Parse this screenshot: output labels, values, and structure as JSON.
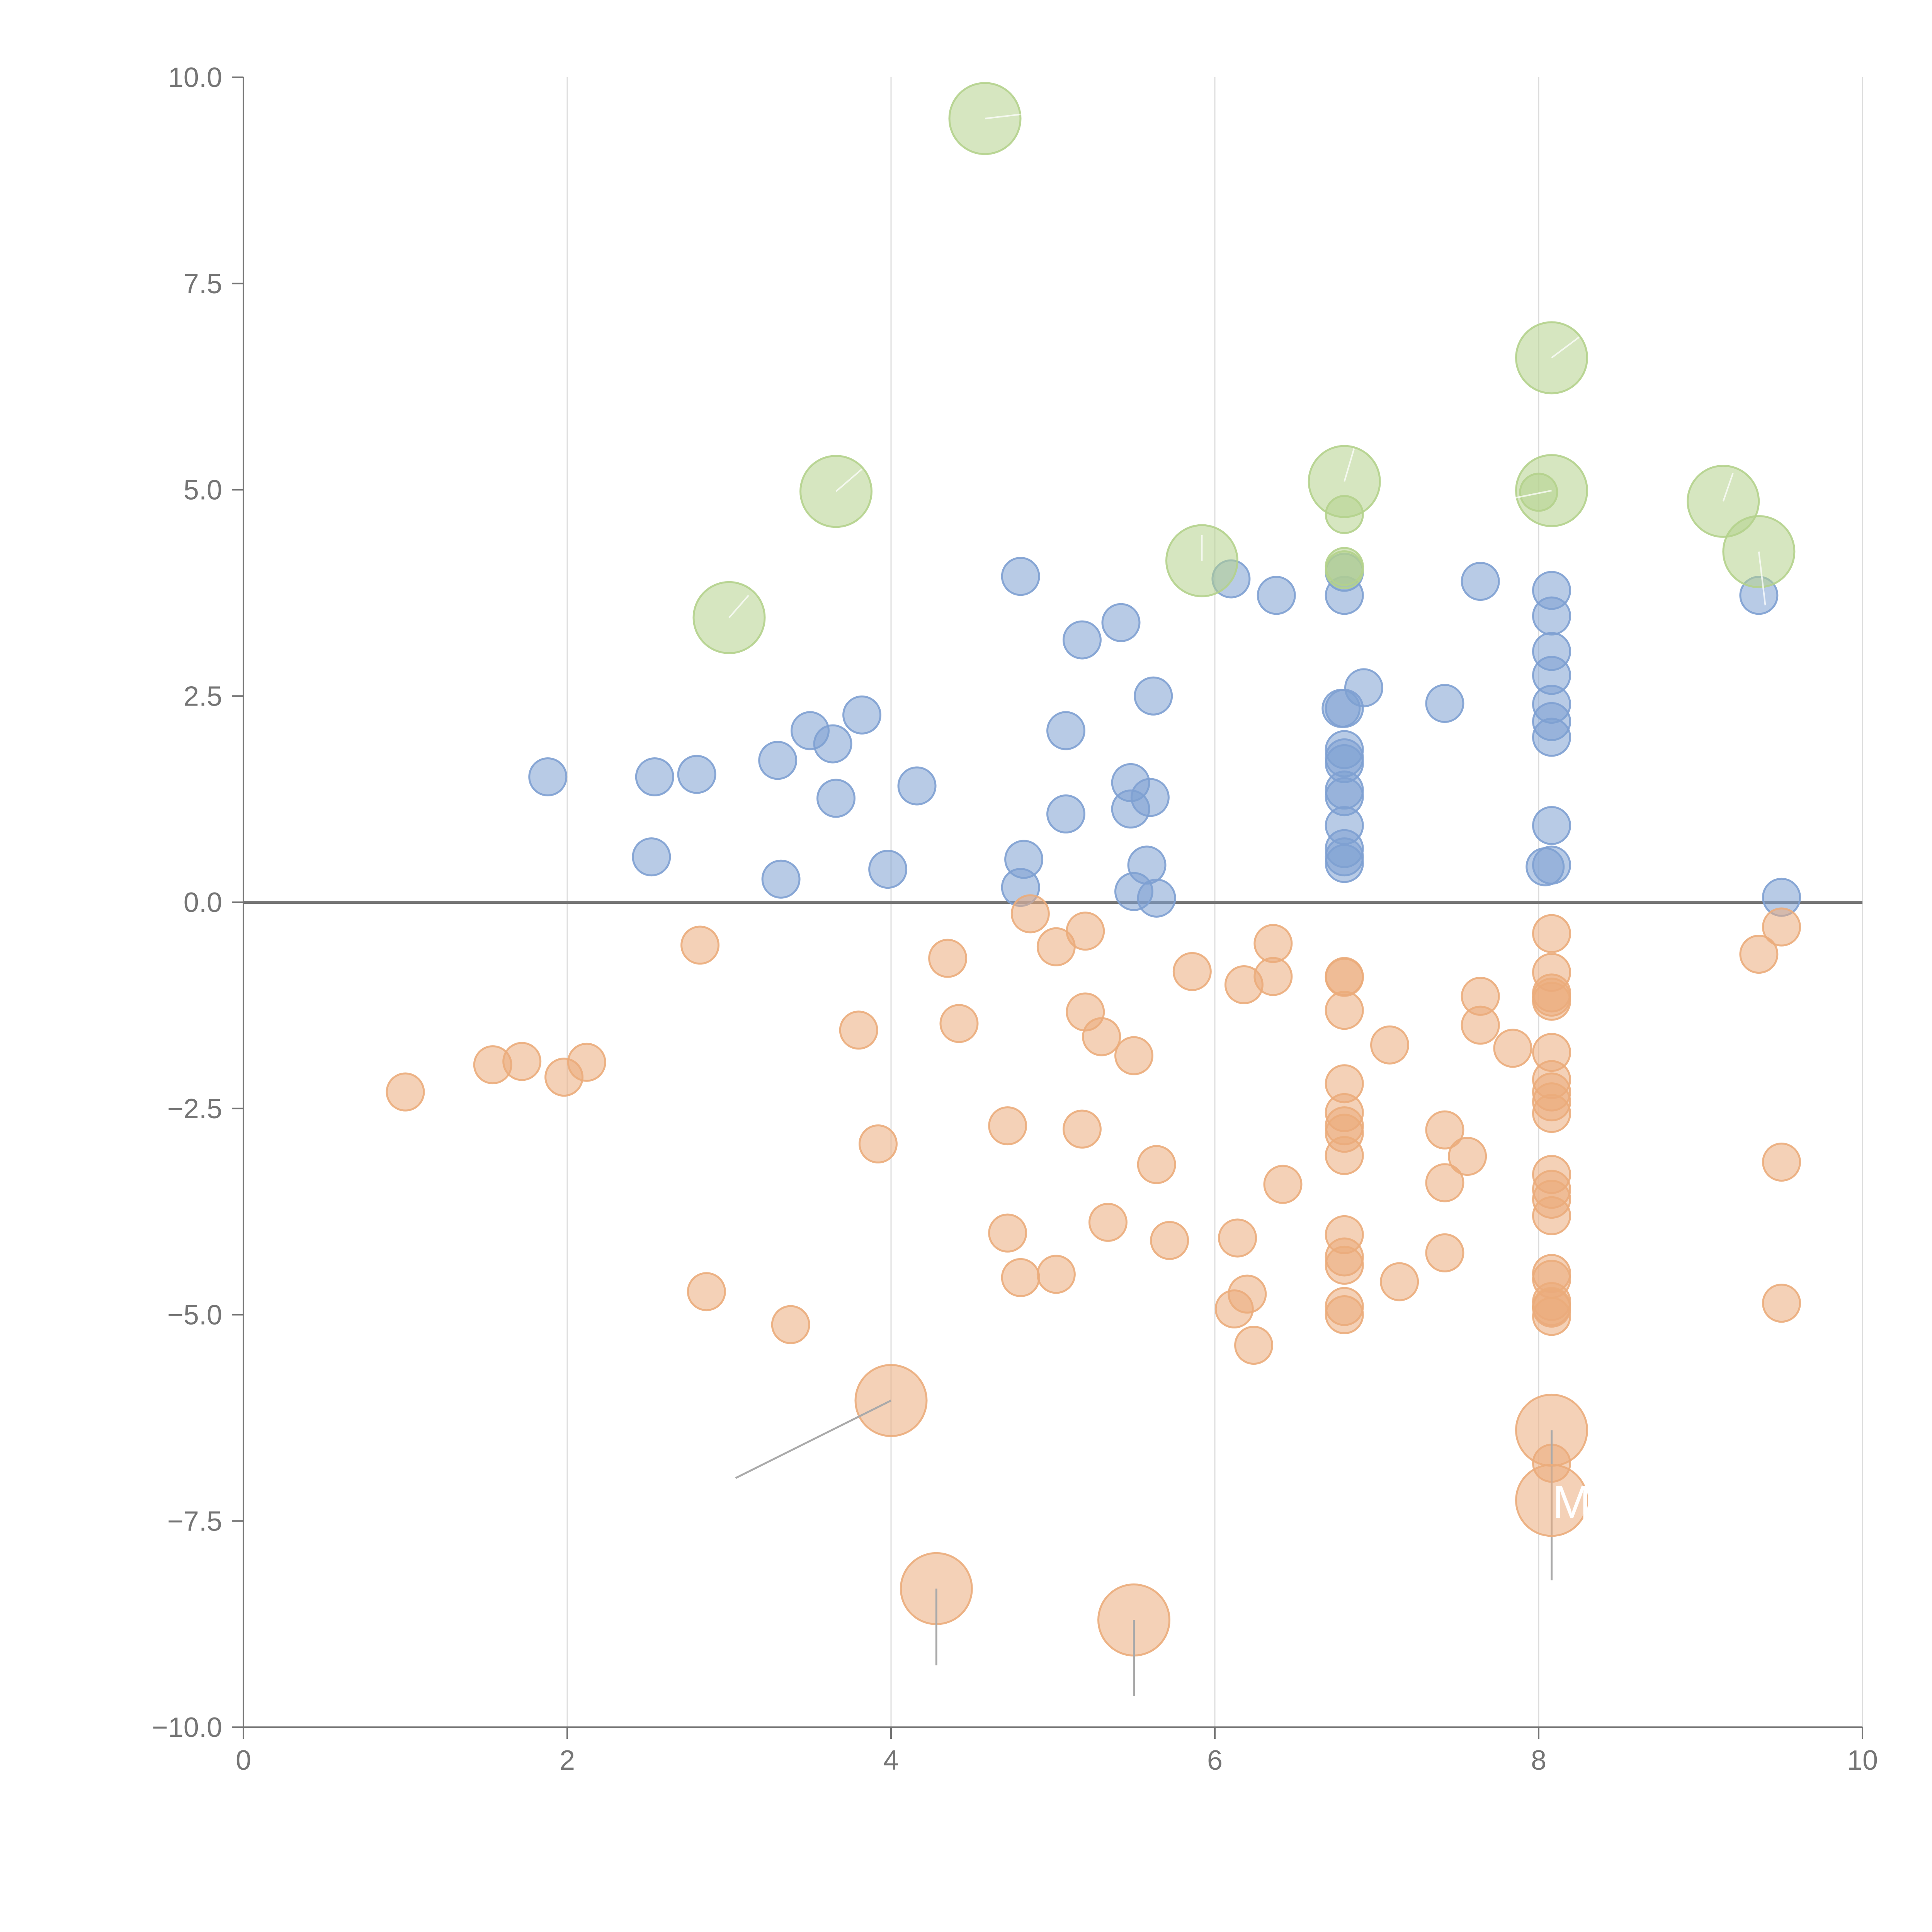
{
  "chart_data": {
    "type": "scatter",
    "title": "",
    "xlabel": "",
    "ylabel": "",
    "xlim": [
      0,
      10
    ],
    "ylim": [
      -10,
      10
    ],
    "x_ticks": [
      "0",
      "2",
      "4",
      "6",
      "8",
      "10"
    ],
    "y_ticks": [
      "10.0",
      "7.5",
      "5.0",
      "2.5",
      "0.0",
      "−2.5",
      "−5.0",
      "−7.5",
      "−10.0"
    ],
    "x_tick_values": [
      0,
      2,
      4,
      6,
      8,
      10
    ],
    "y_tick_values": [
      10,
      7.5,
      5,
      2.5,
      0,
      -2.5,
      -5,
      -7.5,
      -10
    ],
    "grid": "vertical",
    "legend": "none",
    "colors": {
      "positive": "#7ea0d2",
      "negative": "#ebac7b",
      "highlight": "#b4d28c",
      "leader": "#aaaaaa"
    },
    "series": [
      {
        "name": "positive",
        "color": "#7ea0d2",
        "points": [
          [
            1.88,
            1.52
          ],
          [
            2.52,
            0.55
          ],
          [
            2.54,
            1.52
          ],
          [
            2.8,
            1.55
          ],
          [
            3.3,
            1.72
          ],
          [
            3.32,
            0.28
          ],
          [
            3.5,
            2.08
          ],
          [
            3.64,
            1.92
          ],
          [
            3.66,
            1.26
          ],
          [
            3.82,
            2.27
          ],
          [
            3.98,
            0.4
          ],
          [
            4.16,
            1.41
          ],
          [
            4.8,
            3.95
          ],
          [
            4.82,
            0.52
          ],
          [
            4.8,
            0.18
          ],
          [
            5.08,
            2.08
          ],
          [
            5.08,
            1.07
          ],
          [
            5.18,
            3.18
          ],
          [
            5.42,
            3.39
          ],
          [
            5.48,
            1.45
          ],
          [
            5.48,
            1.13
          ],
          [
            5.6,
            1.27
          ],
          [
            5.5,
            0.13
          ],
          [
            5.58,
            0.45
          ],
          [
            5.62,
            2.5
          ],
          [
            5.64,
            0.05
          ],
          [
            6.1,
            3.92
          ],
          [
            6.38,
            3.72
          ],
          [
            6.8,
            4.0
          ],
          [
            6.8,
            3.72
          ],
          [
            6.92,
            2.6
          ],
          [
            6.78,
            2.35
          ],
          [
            6.8,
            2.35
          ],
          [
            6.8,
            1.85
          ],
          [
            6.8,
            1.75
          ],
          [
            6.8,
            1.68
          ],
          [
            6.8,
            1.36
          ],
          [
            6.8,
            1.28
          ],
          [
            6.8,
            0.93
          ],
          [
            6.8,
            0.65
          ],
          [
            6.8,
            0.55
          ],
          [
            6.8,
            0.47
          ],
          [
            7.42,
            2.41
          ],
          [
            7.64,
            3.89
          ],
          [
            8.08,
            3.78
          ],
          [
            8.08,
            3.47
          ],
          [
            8.08,
            3.04
          ],
          [
            8.08,
            2.75
          ],
          [
            8.08,
            2.4
          ],
          [
            8.08,
            2.19
          ],
          [
            8.08,
            2.0
          ],
          [
            8.08,
            0.93
          ],
          [
            8.04,
            0.43
          ],
          [
            8.08,
            0.45
          ],
          [
            9.36,
            3.72
          ],
          [
            9.5,
            0.06
          ]
        ]
      },
      {
        "name": "negative",
        "color": "#ebac7b",
        "points": [
          [
            1.0,
            -2.3
          ],
          [
            1.54,
            -1.97
          ],
          [
            1.72,
            -1.93
          ],
          [
            1.98,
            -2.12
          ],
          [
            2.12,
            -1.94
          ],
          [
            2.82,
            -0.52
          ],
          [
            2.86,
            -4.72
          ],
          [
            3.38,
            -5.12
          ],
          [
            3.8,
            -1.55
          ],
          [
            3.92,
            -2.93
          ],
          [
            4.35,
            -0.68
          ],
          [
            4.42,
            -1.47
          ],
          [
            4.72,
            -2.71
          ],
          [
            4.72,
            -4.01
          ],
          [
            4.8,
            -4.55
          ],
          [
            4.86,
            -0.14
          ],
          [
            5.02,
            -0.54
          ],
          [
            5.02,
            -4.51
          ],
          [
            5.2,
            -0.35
          ],
          [
            5.2,
            -1.33
          ],
          [
            5.18,
            -2.75
          ],
          [
            5.3,
            -1.63
          ],
          [
            5.34,
            -3.88
          ],
          [
            5.5,
            -1.86
          ],
          [
            5.64,
            -3.18
          ],
          [
            5.72,
            -4.1
          ],
          [
            5.86,
            -0.84
          ],
          [
            6.14,
            -4.07
          ],
          [
            6.12,
            -4.93
          ],
          [
            6.18,
            -1.0
          ],
          [
            6.2,
            -4.75
          ],
          [
            6.24,
            -5.37
          ],
          [
            6.36,
            -0.5
          ],
          [
            6.36,
            -0.9
          ],
          [
            6.42,
            -3.42
          ],
          [
            6.8,
            -0.9
          ],
          [
            6.8,
            -0.91
          ],
          [
            6.8,
            -1.31
          ],
          [
            6.8,
            -2.2
          ],
          [
            6.8,
            -2.55
          ],
          [
            6.8,
            -2.71
          ],
          [
            6.8,
            -2.8
          ],
          [
            6.8,
            -3.07
          ],
          [
            6.8,
            -4.03
          ],
          [
            6.8,
            -4.3
          ],
          [
            6.8,
            -4.4
          ],
          [
            6.8,
            -4.9
          ],
          [
            6.8,
            -5.0
          ],
          [
            7.08,
            -1.73
          ],
          [
            7.14,
            -4.6
          ],
          [
            7.42,
            -2.76
          ],
          [
            7.42,
            -3.4
          ],
          [
            7.42,
            -4.25
          ],
          [
            7.56,
            -3.08
          ],
          [
            7.64,
            -1.14
          ],
          [
            7.64,
            -1.49
          ],
          [
            7.84,
            -1.77
          ],
          [
            8.08,
            -0.38
          ],
          [
            8.08,
            -0.85
          ],
          [
            8.08,
            -1.1
          ],
          [
            8.08,
            -1.15
          ],
          [
            8.08,
            -1.2
          ],
          [
            8.08,
            -1.82
          ],
          [
            8.08,
            -2.15
          ],
          [
            8.08,
            -2.3
          ],
          [
            8.08,
            -2.42
          ],
          [
            8.08,
            -2.56
          ],
          [
            8.08,
            -3.3
          ],
          [
            8.08,
            -3.48
          ],
          [
            8.08,
            -3.6
          ],
          [
            8.08,
            -3.8
          ],
          [
            8.08,
            -4.5
          ],
          [
            8.08,
            -4.57
          ],
          [
            8.08,
            -4.84
          ],
          [
            8.08,
            -4.9
          ],
          [
            8.08,
            -4.92
          ],
          [
            8.08,
            -5.02
          ],
          [
            8.08,
            -6.8
          ],
          [
            9.36,
            -0.63
          ],
          [
            9.5,
            -0.3
          ],
          [
            9.5,
            -3.15
          ],
          [
            9.5,
            -4.86
          ]
        ]
      },
      {
        "name": "highlight",
        "color": "#b4d28c",
        "points": [
          [
            8.0,
            4.97
          ],
          [
            6.8,
            4.7
          ],
          [
            6.8,
            4.07
          ],
          [
            6.8,
            4.03
          ]
        ]
      }
    ],
    "large_markers": [
      {
        "x": 4.58,
        "y": 9.5,
        "color": "#b4d28c",
        "leader_to": [
          4.8,
          9.55
        ],
        "leader_style": "light"
      },
      {
        "x": 3.66,
        "y": 4.98,
        "color": "#b4d28c",
        "leader_to": [
          3.82,
          5.25
        ],
        "leader_style": "light"
      },
      {
        "x": 3.0,
        "y": 3.45,
        "color": "#b4d28c",
        "leader_to": [
          3.12,
          3.72
        ],
        "leader_style": "light"
      },
      {
        "x": 5.92,
        "y": 4.14,
        "color": "#b4d28c",
        "leader_to": [
          5.92,
          4.45
        ],
        "leader_style": "light"
      },
      {
        "x": 6.8,
        "y": 5.1,
        "color": "#b4d28c",
        "leader_to": [
          6.86,
          5.5
        ],
        "leader_style": "light"
      },
      {
        "x": 8.08,
        "y": 6.6,
        "color": "#b4d28c",
        "leader_to": [
          8.25,
          6.85
        ],
        "leader_style": "light"
      },
      {
        "x": 8.08,
        "y": 4.99,
        "color": "#b4d28c",
        "leader_to": [
          7.85,
          4.9
        ],
        "leader_style": "light"
      },
      {
        "x": 9.14,
        "y": 4.86,
        "color": "#b4d28c",
        "leader_to": [
          9.2,
          5.2
        ],
        "leader_style": "light"
      },
      {
        "x": 9.36,
        "y": 4.25,
        "color": "#b4d28c",
        "leader_to": [
          9.4,
          3.6
        ],
        "leader_style": "light"
      },
      {
        "x": 4.0,
        "y": -6.04,
        "color": "#ebac7b",
        "leader_to": [
          3.04,
          -6.98
        ],
        "leader_style": "dark"
      },
      {
        "x": 4.28,
        "y": -8.32,
        "color": "#ebac7b",
        "leader_to": [
          4.28,
          -9.25
        ],
        "leader_style": "dark"
      },
      {
        "x": 5.5,
        "y": -8.7,
        "color": "#ebac7b",
        "leader_to": [
          5.5,
          -9.62
        ],
        "leader_style": "dark"
      },
      {
        "x": 8.08,
        "y": -6.4,
        "color": "#ebac7b",
        "leader_to": [
          8.08,
          -8.22
        ],
        "leader_style": "dark"
      },
      {
        "x": 8.08,
        "y": -7.25,
        "color": "#ebac7b",
        "label": "M"
      }
    ]
  }
}
